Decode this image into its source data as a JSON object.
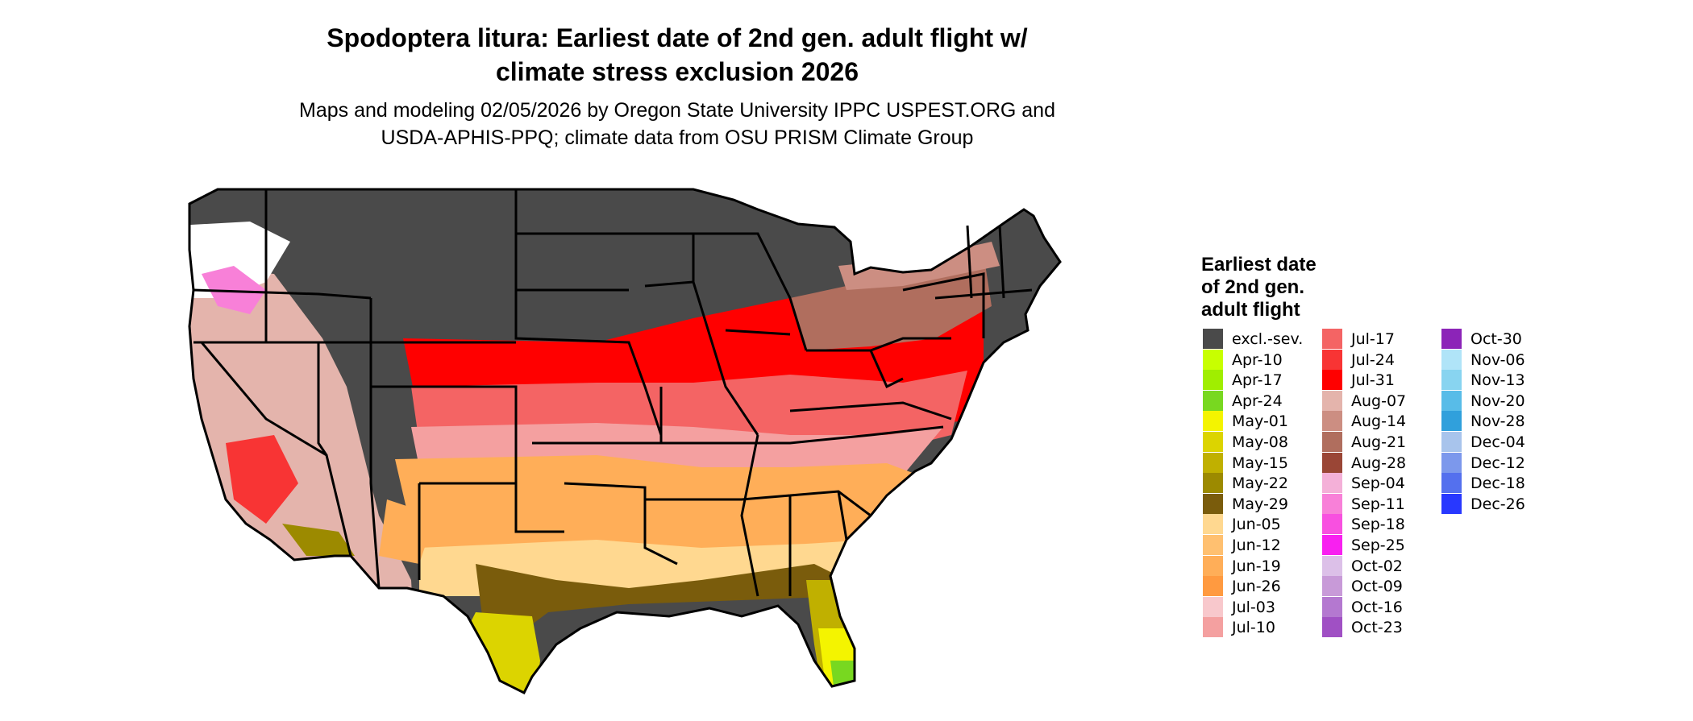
{
  "title_line1": "Spodoptera litura: Earliest date of 2nd gen. adult flight w/",
  "title_line2": "climate stress exclusion 2026",
  "subtitle_line1": "Maps and modeling 02/05/2026 by Oregon State University IPPC USPEST.ORG and",
  "subtitle_line2": "USDA-APHIS-PPQ; climate data from OSU PRISM Climate Group",
  "legend": {
    "title_line1": "Earliest date",
    "title_line2": "of 2nd gen.",
    "title_line3": "adult flight",
    "items": [
      {
        "label": "excl.-sev.",
        "color": "#4a4a4a"
      },
      {
        "label": "Apr-10",
        "color": "#c8ff00"
      },
      {
        "label": "Apr-17",
        "color": "#a0ee00"
      },
      {
        "label": "Apr-24",
        "color": "#78d820"
      },
      {
        "label": "May-01",
        "color": "#f4f400"
      },
      {
        "label": "May-08",
        "color": "#dcd400"
      },
      {
        "label": "May-15",
        "color": "#c0b000"
      },
      {
        "label": "May-22",
        "color": "#9c8a00"
      },
      {
        "label": "May-29",
        "color": "#7a5c0c"
      },
      {
        "label": "Jun-05",
        "color": "#ffd890"
      },
      {
        "label": "Jun-12",
        "color": "#ffc070"
      },
      {
        "label": "Jun-19",
        "color": "#ffae58"
      },
      {
        "label": "Jun-26",
        "color": "#ff9a40"
      },
      {
        "label": "Jul-03",
        "color": "#f8c8cc"
      },
      {
        "label": "Jul-10",
        "color": "#f4a0a0"
      },
      {
        "label": "Jul-17",
        "color": "#f46464"
      },
      {
        "label": "Jul-24",
        "color": "#f83434"
      },
      {
        "label": "Jul-31",
        "color": "#ff0000"
      },
      {
        "label": "Aug-07",
        "color": "#e4b4ac"
      },
      {
        "label": "Aug-14",
        "color": "#cc8e82"
      },
      {
        "label": "Aug-21",
        "color": "#b06e5e"
      },
      {
        "label": "Aug-28",
        "color": "#9a4636"
      },
      {
        "label": "Sep-04",
        "color": "#f4b0d8"
      },
      {
        "label": "Sep-11",
        "color": "#f880d8"
      },
      {
        "label": "Sep-18",
        "color": "#f850e0"
      },
      {
        "label": "Sep-25",
        "color": "#f820f0"
      },
      {
        "label": "Oct-02",
        "color": "#dcc0e8"
      },
      {
        "label": "Oct-09",
        "color": "#c89ad8"
      },
      {
        "label": "Oct-16",
        "color": "#b478d0"
      },
      {
        "label": "Oct-23",
        "color": "#a050c4"
      },
      {
        "label": "Oct-30",
        "color": "#8c24b8"
      },
      {
        "label": "Nov-06",
        "color": "#b0e4f8"
      },
      {
        "label": "Nov-13",
        "color": "#88d4f0"
      },
      {
        "label": "Nov-20",
        "color": "#58bce8"
      },
      {
        "label": "Nov-28",
        "color": "#30a0dc"
      },
      {
        "label": "Dec-04",
        "color": "#a8c4ec"
      },
      {
        "label": "Dec-12",
        "color": "#7c98ec"
      },
      {
        "label": "Dec-18",
        "color": "#5470ee"
      },
      {
        "label": "Dec-26",
        "color": "#2838ff"
      }
    ]
  }
}
